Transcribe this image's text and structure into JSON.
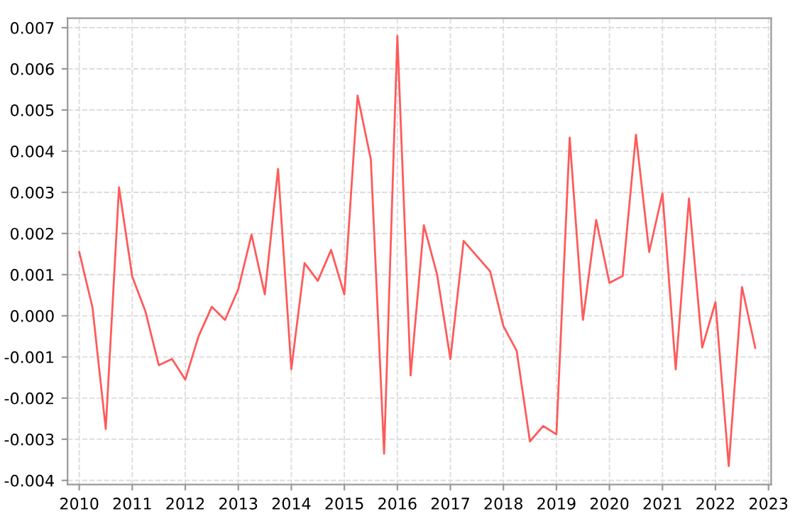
{
  "chart_data": {
    "type": "line",
    "x": [
      2010.0,
      2010.25,
      2010.5,
      2010.75,
      2011.0,
      2011.25,
      2011.5,
      2011.75,
      2012.0,
      2012.25,
      2012.5,
      2012.75,
      2013.0,
      2013.25,
      2013.5,
      2013.75,
      2014.0,
      2014.25,
      2014.5,
      2014.75,
      2015.0,
      2015.25,
      2015.5,
      2015.75,
      2016.0,
      2016.25,
      2016.5,
      2016.75,
      2017.0,
      2017.25,
      2017.5,
      2017.75,
      2018.0,
      2018.25,
      2018.5,
      2018.75,
      2019.0,
      2019.25,
      2019.5,
      2019.75,
      2020.0,
      2020.25,
      2020.5,
      2020.75,
      2021.0,
      2021.25,
      2021.5,
      2021.75,
      2022.0,
      2022.25,
      2022.5,
      2022.75
    ],
    "series": [
      {
        "color": "#ff5a5a",
        "values": [
          0.00155,
          0.0002,
          -0.00275,
          0.00312,
          0.00095,
          0.0001,
          -0.0012,
          -0.00105,
          -0.00155,
          -0.0005,
          0.00022,
          -0.0001,
          0.00065,
          0.00197,
          0.00052,
          0.00357,
          -0.0013,
          0.00128,
          0.00085,
          0.0016,
          0.00052,
          0.00535,
          0.0038,
          -0.00335,
          0.0068,
          -0.00145,
          0.0022,
          0.001,
          -0.00105,
          0.00182,
          0.00145,
          0.00108,
          -0.00025,
          -0.00085,
          -0.00305,
          -0.00268,
          -0.00288,
          0.00433,
          -0.0001,
          0.00233,
          0.0008,
          0.00097,
          0.0044,
          0.00155,
          0.00297,
          -0.0013,
          0.00285,
          -0.00077,
          0.00033,
          -0.00365,
          0.0007,
          -0.00078
        ]
      }
    ],
    "xlim": [
      2009.78,
      2023.05
    ],
    "ylim": [
      -0.0041,
      0.00723
    ],
    "xticks": [
      2010,
      2011,
      2012,
      2013,
      2014,
      2015,
      2016,
      2017,
      2018,
      2019,
      2020,
      2021,
      2022,
      2023
    ],
    "yticks": [
      {
        "value": -0.004,
        "label": "-0.004"
      },
      {
        "value": -0.003,
        "label": "-0.003"
      },
      {
        "value": -0.002,
        "label": "-0.002"
      },
      {
        "value": -0.001,
        "label": "-0.001"
      },
      {
        "value": 0.0,
        "label": "0.000"
      },
      {
        "value": 0.001,
        "label": "0.001"
      },
      {
        "value": 0.002,
        "label": "0.002"
      },
      {
        "value": 0.003,
        "label": "0.003"
      },
      {
        "value": 0.004,
        "label": "0.004"
      },
      {
        "value": 0.005,
        "label": "0.005"
      },
      {
        "value": 0.006,
        "label": "0.006"
      },
      {
        "value": 0.007,
        "label": "0.007"
      }
    ],
    "grid": true,
    "line_style": "solid"
  }
}
